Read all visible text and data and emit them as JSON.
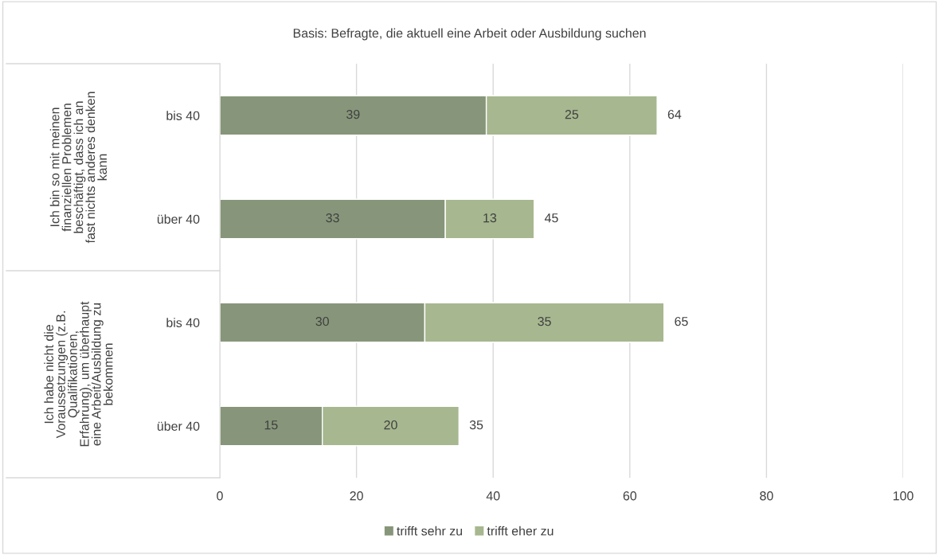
{
  "chart_data": {
    "type": "bar",
    "orientation": "horizontal",
    "stacked": true,
    "title": "Basis: Befragte, die aktuell eine Arbeit oder Ausbildung suchen",
    "categories": [
      "bis 40",
      "über 40",
      "bis 40",
      "über 40"
    ],
    "series": [
      {
        "name": "trifft sehr zu",
        "color": "#87967a",
        "values": [
          39,
          33,
          30,
          15
        ]
      },
      {
        "name": "trifft eher zu",
        "color": "#a7b78f",
        "values": [
          25,
          13,
          35,
          20
        ]
      }
    ],
    "totals": [
      "64",
      "45",
      "65",
      "35"
    ],
    "data_labels": true,
    "annotations": [
      "Ich bin so mit meinen\nfinanziellen Problemen\nbeschäftigt, dass ich an\nfast nichts anderes denken\nkann",
      "Ich habe nicht die\nVoraussetzungen (z.B.\nQualifikationen,\nErfahrung), um überhaupt\neine Arbeit/Ausbildung zu\nbekommen"
    ],
    "xlim": [
      0,
      100
    ],
    "xticks": [
      0,
      20,
      40,
      60,
      80,
      100
    ],
    "grid": "x",
    "legend": "bottom"
  }
}
